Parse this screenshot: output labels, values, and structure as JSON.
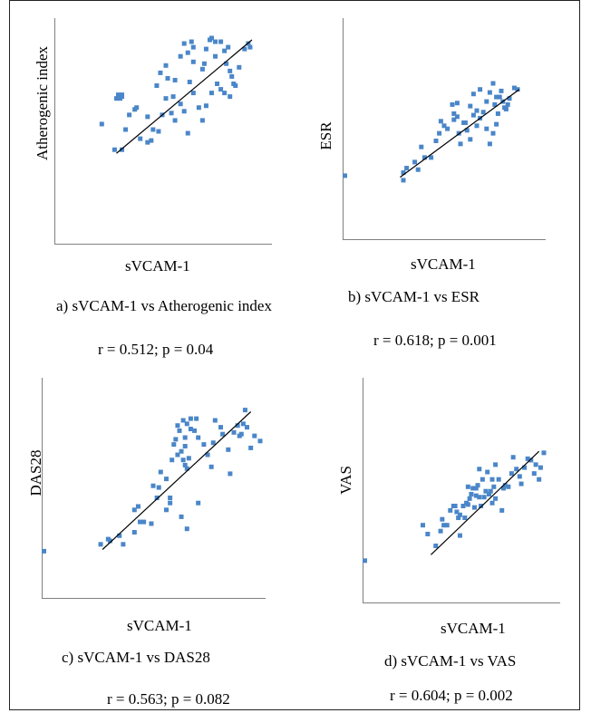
{
  "colors": {
    "point": "#4a86c8",
    "axis": "#808080",
    "fit_line": "#000000"
  },
  "chart_data": [
    {
      "type": "scatter",
      "xlabel": "sVCAM-1",
      "ylabel": "Atherogenic index",
      "caption": "a) sVCAM-1 vs Atherogenic index",
      "stat": "r = 0.512; p = 0.04",
      "points": [
        [
          0.15,
          0.53
        ],
        [
          0.23,
          0.67
        ],
        [
          0.24,
          0.68
        ],
        [
          0.24,
          0.69
        ],
        [
          0.25,
          0.67
        ],
        [
          0.26,
          0.68
        ],
        [
          0.26,
          0.69
        ],
        [
          0.22,
          0.39
        ],
        [
          0.26,
          0.39
        ],
        [
          0.28,
          0.5
        ],
        [
          0.34,
          0.62
        ],
        [
          0.33,
          0.61
        ],
        [
          0.4,
          0.57
        ],
        [
          0.43,
          0.5
        ],
        [
          0.45,
          0.74
        ],
        [
          0.47,
          0.81
        ],
        [
          0.5,
          0.85
        ],
        [
          0.51,
          0.78
        ],
        [
          0.54,
          0.68
        ],
        [
          0.55,
          0.77
        ],
        [
          0.58,
          0.9
        ],
        [
          0.6,
          0.97
        ],
        [
          0.62,
          0.92
        ],
        [
          0.64,
          0.98
        ],
        [
          0.65,
          0.87
        ],
        [
          0.65,
          0.95
        ],
        [
          0.7,
          0.83
        ],
        [
          0.72,
          0.94
        ],
        [
          0.74,
          0.99
        ],
        [
          0.75,
          1.0
        ],
        [
          0.77,
          0.9
        ],
        [
          0.77,
          0.98
        ],
        [
          0.8,
          0.98
        ],
        [
          0.82,
          0.93
        ],
        [
          0.83,
          0.86
        ],
        [
          0.84,
          0.95
        ],
        [
          0.85,
          0.82
        ],
        [
          0.86,
          0.79
        ],
        [
          0.87,
          0.75
        ],
        [
          0.9,
          0.84
        ],
        [
          0.93,
          0.94
        ],
        [
          0.95,
          0.97
        ],
        [
          0.96,
          0.95
        ],
        [
          0.5,
          0.67
        ],
        [
          0.55,
          0.55
        ],
        [
          0.6,
          0.6
        ],
        [
          0.62,
          0.48
        ],
        [
          0.65,
          0.7
        ],
        [
          0.68,
          0.62
        ],
        [
          0.7,
          0.55
        ],
        [
          0.72,
          0.63
        ],
        [
          0.75,
          0.7
        ],
        [
          0.78,
          0.75
        ],
        [
          0.8,
          0.72
        ],
        [
          0.82,
          0.7
        ],
        [
          0.85,
          0.68
        ],
        [
          0.4,
          0.43
        ],
        [
          0.36,
          0.45
        ],
        [
          0.46,
          0.49
        ],
        [
          0.53,
          0.59
        ],
        [
          0.48,
          0.58
        ],
        [
          0.42,
          0.44
        ],
        [
          0.58,
          0.64
        ],
        [
          0.3,
          0.58
        ],
        [
          0.63,
          0.76
        ],
        [
          0.71,
          0.86
        ],
        [
          0.88,
          0.74
        ]
      ],
      "fit": [
        [
          0.23,
          0.37
        ],
        [
          0.97,
          0.99
        ]
      ]
    },
    {
      "type": "scatter",
      "xlabel": "sVCAM-1",
      "ylabel": "ESR",
      "caption": "b) sVCAM-1 vs ESR",
      "stat": "r = 0.618; p = 0.001",
      "points": [
        [
          0.0,
          0.27
        ],
        [
          0.25,
          0.24
        ],
        [
          0.25,
          0.29
        ],
        [
          0.27,
          0.32
        ],
        [
          0.32,
          0.36
        ],
        [
          0.34,
          0.31
        ],
        [
          0.36,
          0.46
        ],
        [
          0.38,
          0.39
        ],
        [
          0.42,
          0.39
        ],
        [
          0.45,
          0.5
        ],
        [
          0.47,
          0.55
        ],
        [
          0.48,
          0.63
        ],
        [
          0.5,
          0.6
        ],
        [
          0.52,
          0.58
        ],
        [
          0.55,
          0.74
        ],
        [
          0.56,
          0.68
        ],
        [
          0.58,
          0.66
        ],
        [
          0.58,
          0.75
        ],
        [
          0.59,
          0.55
        ],
        [
          0.6,
          0.48
        ],
        [
          0.62,
          0.62
        ],
        [
          0.63,
          0.62
        ],
        [
          0.64,
          0.57
        ],
        [
          0.66,
          0.73
        ],
        [
          0.68,
          0.81
        ],
        [
          0.7,
          0.7
        ],
        [
          0.72,
          0.84
        ],
        [
          0.74,
          0.69
        ],
        [
          0.76,
          0.76
        ],
        [
          0.78,
          0.82
        ],
        [
          0.8,
          0.88
        ],
        [
          0.81,
          0.74
        ],
        [
          0.82,
          0.79
        ],
        [
          0.83,
          0.68
        ],
        [
          0.84,
          0.79
        ],
        [
          0.85,
          0.83
        ],
        [
          0.86,
          0.76
        ],
        [
          0.87,
          0.72
        ],
        [
          0.89,
          0.74
        ],
        [
          0.9,
          0.78
        ],
        [
          0.93,
          0.85
        ],
        [
          0.95,
          0.84
        ],
        [
          0.78,
          0.48
        ],
        [
          0.8,
          0.55
        ],
        [
          0.7,
          0.6
        ],
        [
          0.72,
          0.65
        ],
        [
          0.76,
          0.58
        ],
        [
          0.68,
          0.67
        ],
        [
          0.56,
          0.64
        ],
        [
          0.66,
          0.51
        ],
        [
          0.82,
          0.61
        ],
        [
          0.88,
          0.71
        ]
      ],
      "fit": [
        [
          0.23,
          0.26
        ],
        [
          0.96,
          0.84
        ]
      ]
    },
    {
      "type": "scatter",
      "xlabel": "sVCAM-1",
      "ylabel": "DAS28",
      "caption": "c) sVCAM-1 vs DAS28",
      "stat": "r = 0.563; p = 0.082",
      "points": [
        [
          0.0,
          0.14
        ],
        [
          0.15,
          0.18
        ],
        [
          0.19,
          0.21
        ],
        [
          0.2,
          0.2
        ],
        [
          0.25,
          0.23
        ],
        [
          0.27,
          0.18
        ],
        [
          0.33,
          0.38
        ],
        [
          0.35,
          0.4
        ],
        [
          0.33,
          0.25
        ],
        [
          0.36,
          0.31
        ],
        [
          0.38,
          0.31
        ],
        [
          0.42,
          0.3
        ],
        [
          0.43,
          0.52
        ],
        [
          0.46,
          0.51
        ],
        [
          0.45,
          0.45
        ],
        [
          0.47,
          0.6
        ],
        [
          0.5,
          0.56
        ],
        [
          0.5,
          0.38
        ],
        [
          0.52,
          0.45
        ],
        [
          0.52,
          0.42
        ],
        [
          0.53,
          0.67
        ],
        [
          0.54,
          0.76
        ],
        [
          0.55,
          0.79
        ],
        [
          0.57,
          0.84
        ],
        [
          0.58,
          0.72
        ],
        [
          0.59,
          0.9
        ],
        [
          0.6,
          0.8
        ],
        [
          0.6,
          0.75
        ],
        [
          0.61,
          0.88
        ],
        [
          0.61,
          0.62
        ],
        [
          0.62,
          0.68
        ],
        [
          0.63,
          0.91
        ],
        [
          0.63,
          0.85
        ],
        [
          0.65,
          0.84
        ],
        [
          0.66,
          0.91
        ],
        [
          0.67,
          0.8
        ],
        [
          0.67,
          0.42
        ],
        [
          0.72,
          0.7
        ],
        [
          0.75,
          0.77
        ],
        [
          0.79,
          0.86
        ],
        [
          0.8,
          0.82
        ],
        [
          0.83,
          0.73
        ],
        [
          0.84,
          0.59
        ],
        [
          0.86,
          0.83
        ],
        [
          0.88,
          0.87
        ],
        [
          0.9,
          0.82
        ],
        [
          0.92,
          0.96
        ],
        [
          0.93,
          0.86
        ],
        [
          0.95,
          0.74
        ],
        [
          0.97,
          0.81
        ],
        [
          1.0,
          0.78
        ],
        [
          0.56,
          0.7
        ],
        [
          0.58,
          0.34
        ],
        [
          0.59,
          0.67
        ],
        [
          0.6,
          0.64
        ],
        [
          0.7,
          0.76
        ],
        [
          0.74,
          0.63
        ],
        [
          0.76,
          0.9
        ],
        [
          0.61,
          0.27
        ],
        [
          0.56,
          0.87
        ],
        [
          0.89,
          0.81
        ],
        [
          0.91,
          0.88
        ]
      ],
      "fit": [
        [
          0.16,
          0.15
        ],
        [
          0.95,
          0.95
        ]
      ]
    },
    {
      "type": "scatter",
      "xlabel": "sVCAM-1",
      "ylabel": "VAS",
      "caption": "d) sVCAM-1 vs VAS",
      "stat": "r = 0.604; p = 0.002",
      "points": [
        [
          0.0,
          0.13
        ],
        [
          0.25,
          0.37
        ],
        [
          0.28,
          0.31
        ],
        [
          0.33,
          0.23
        ],
        [
          0.36,
          0.33
        ],
        [
          0.37,
          0.41
        ],
        [
          0.38,
          0.37
        ],
        [
          0.4,
          0.37
        ],
        [
          0.42,
          0.47
        ],
        [
          0.44,
          0.5
        ],
        [
          0.46,
          0.46
        ],
        [
          0.47,
          0.42
        ],
        [
          0.48,
          0.44
        ],
        [
          0.5,
          0.5
        ],
        [
          0.51,
          0.42
        ],
        [
          0.52,
          0.52
        ],
        [
          0.53,
          0.51
        ],
        [
          0.54,
          0.55
        ],
        [
          0.55,
          0.58
        ],
        [
          0.56,
          0.62
        ],
        [
          0.57,
          0.49
        ],
        [
          0.58,
          0.57
        ],
        [
          0.59,
          0.64
        ],
        [
          0.6,
          0.56
        ],
        [
          0.61,
          0.5
        ],
        [
          0.62,
          0.68
        ],
        [
          0.63,
          0.56
        ],
        [
          0.64,
          0.6
        ],
        [
          0.65,
          0.73
        ],
        [
          0.66,
          0.58
        ],
        [
          0.67,
          0.6
        ],
        [
          0.68,
          0.52
        ],
        [
          0.69,
          0.63
        ],
        [
          0.7,
          0.55
        ],
        [
          0.72,
          0.68
        ],
        [
          0.74,
          0.47
        ],
        [
          0.75,
          0.62
        ],
        [
          0.76,
          0.64
        ],
        [
          0.78,
          0.63
        ],
        [
          0.8,
          0.72
        ],
        [
          0.81,
          0.83
        ],
        [
          0.83,
          0.75
        ],
        [
          0.85,
          0.7
        ],
        [
          0.86,
          0.65
        ],
        [
          0.88,
          0.76
        ],
        [
          0.9,
          0.82
        ],
        [
          0.92,
          0.81
        ],
        [
          0.94,
          0.72
        ],
        [
          0.95,
          0.78
        ],
        [
          0.97,
          0.68
        ],
        [
          0.98,
          0.76
        ],
        [
          1.0,
          0.86
        ],
        [
          0.53,
          0.63
        ],
        [
          0.6,
          0.75
        ],
        [
          0.48,
          0.3
        ],
        [
          0.45,
          0.5
        ],
        [
          0.58,
          0.62
        ],
        [
          0.68,
          0.68
        ],
        [
          0.7,
          0.78
        ]
      ],
      "fit": [
        [
          0.3,
          0.17
        ],
        [
          0.97,
          0.87
        ]
      ]
    }
  ]
}
